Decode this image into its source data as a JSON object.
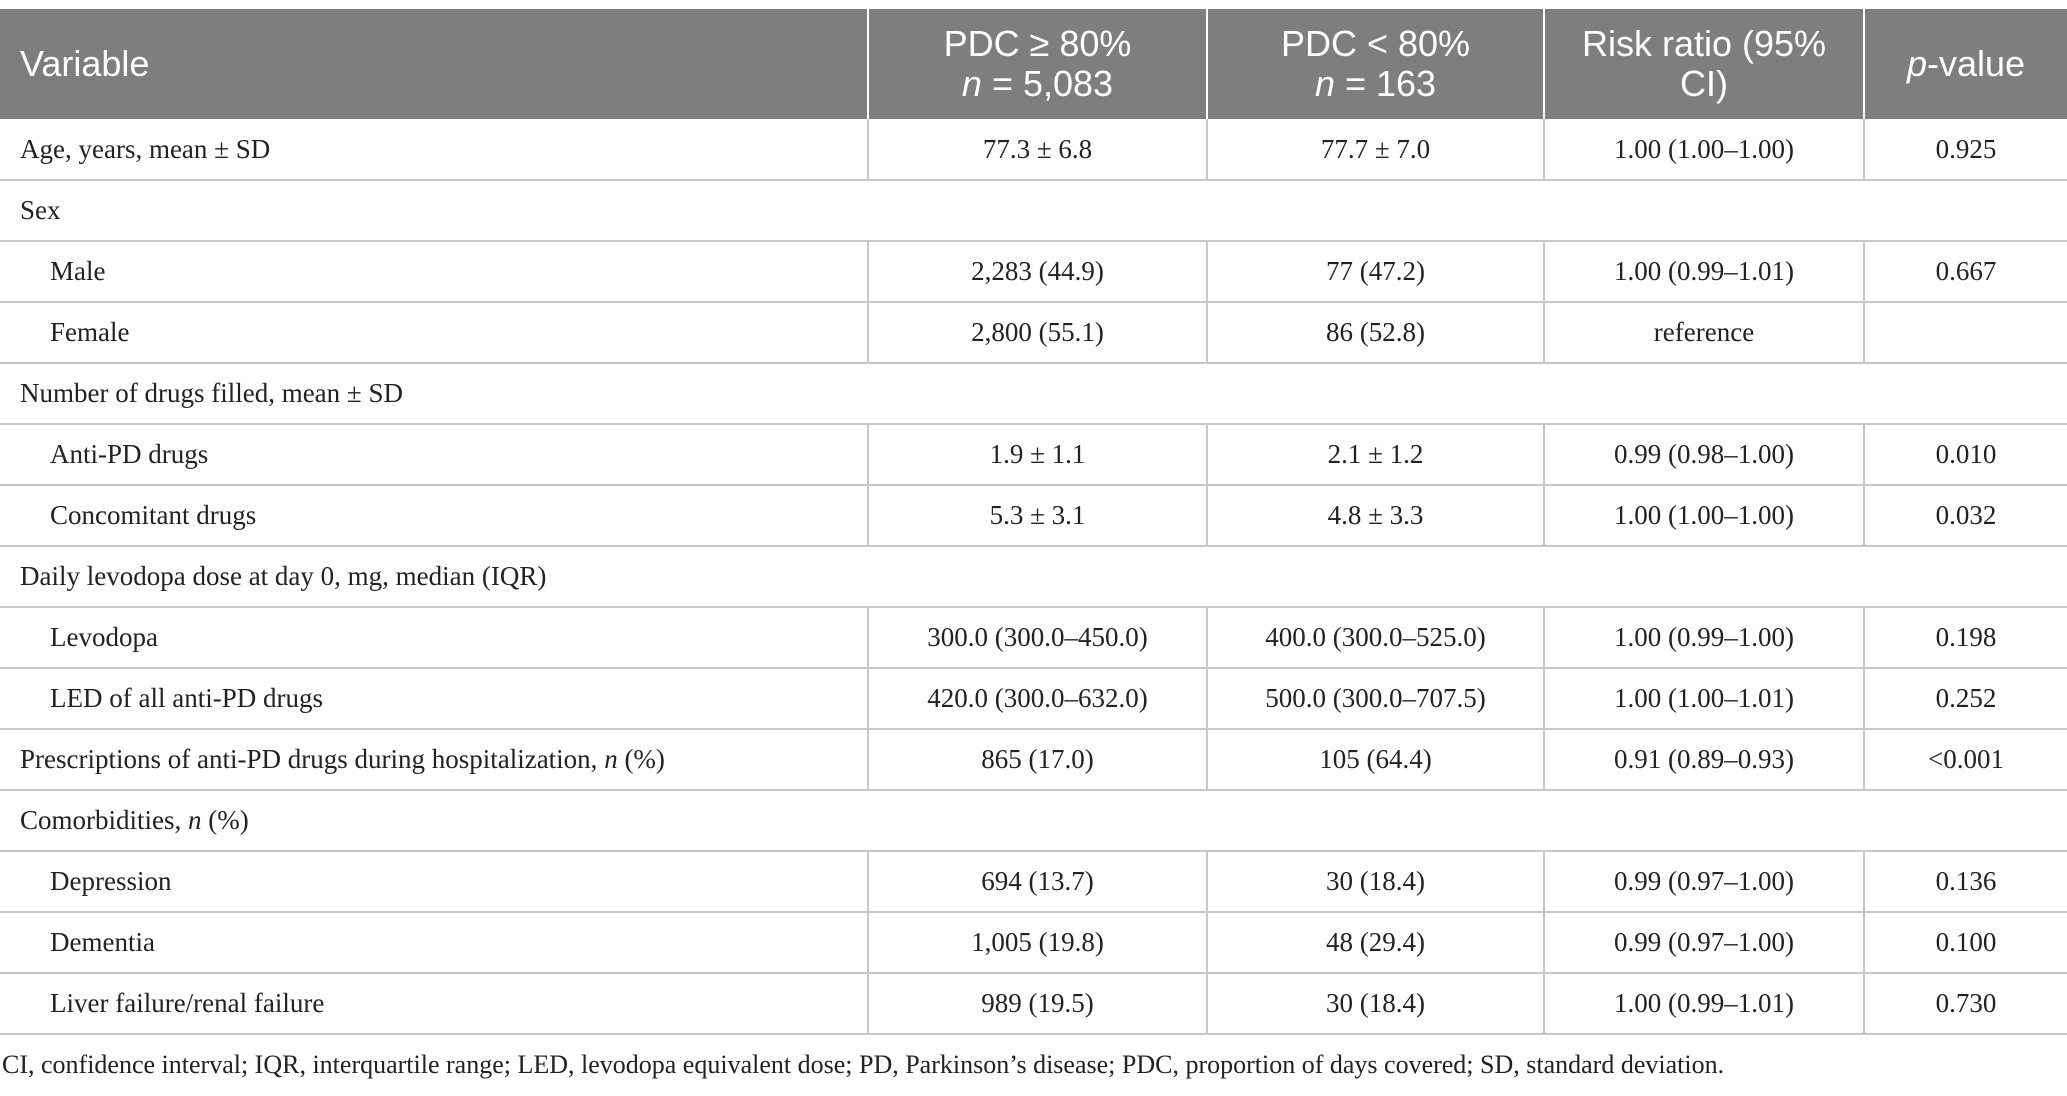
{
  "header": {
    "variable": "Variable",
    "pdc_high": "PDC ≥ 80%",
    "n_high_prefix": "n",
    "n_high_rest": " = 5,083",
    "pdc_low": "PDC < 80%",
    "n_low_prefix": "n",
    "n_low_rest": " = 163",
    "risk_ratio_l1": "Risk ratio (95%",
    "risk_ratio_l2": "CI)",
    "pvalue_prefix": "p",
    "pvalue_rest": "-value"
  },
  "rows": [
    {
      "label": "Age, years, mean ± SD",
      "high": "77.3 ± 6.8",
      "low": "77.7 ± 7.0",
      "rr": "1.00 (1.00–1.00)",
      "p": "0.925"
    },
    {
      "label": "Sex"
    },
    {
      "label": "Male",
      "high": "2,283 (44.9)",
      "low": "77 (47.2)",
      "rr": "1.00 (0.99–1.01)",
      "p": "0.667"
    },
    {
      "label": "Female",
      "high": "2,800 (55.1)",
      "low": "86 (52.8)",
      "rr": "reference",
      "p": ""
    },
    {
      "label": "Number of drugs filled, mean ± SD"
    },
    {
      "label": "Anti-PD drugs",
      "high": "1.9 ± 1.1",
      "low": "2.1 ± 1.2",
      "rr": "0.99 (0.98–1.00)",
      "p": "0.010"
    },
    {
      "label": "Concomitant drugs",
      "high": "5.3 ± 3.1",
      "low": "4.8 ± 3.3",
      "rr": "1.00 (1.00–1.00)",
      "p": "0.032"
    },
    {
      "label": "Daily levodopa dose at day 0, mg, median (IQR)"
    },
    {
      "label": "Levodopa",
      "high": "300.0 (300.0–450.0)",
      "low": "400.0 (300.0–525.0)",
      "rr": "1.00 (0.99–1.00)",
      "p": "0.198"
    },
    {
      "label": "LED of all anti-PD drugs",
      "high": "420.0 (300.0–632.0)",
      "low": "500.0 (300.0–707.5)",
      "rr": "1.00 (1.00–1.01)",
      "p": "0.252"
    },
    {
      "label_pre": "Prescriptions of anti-PD drugs during hospitalization, ",
      "label_it": "n",
      "label_post": " (%)",
      "high": "865 (17.0)",
      "low": "105 (64.4)",
      "rr": "0.91 (0.89–0.93)",
      "p": "<0.001"
    },
    {
      "label_pre": "Comorbidities, ",
      "label_it": "n",
      "label_post": " (%)"
    },
    {
      "label": "Depression",
      "high": "694 (13.7)",
      "low": "30 (18.4)",
      "rr": "0.99 (0.97–1.00)",
      "p": "0.136"
    },
    {
      "label": "Dementia",
      "high": "1,005 (19.8)",
      "low": "48 (29.4)",
      "rr": "0.99 (0.97–1.00)",
      "p": "0.100"
    },
    {
      "label": "Liver failure/renal failure",
      "high": "989 (19.5)",
      "low": "30 (18.4)",
      "rr": "1.00 (0.99–1.01)",
      "p": "0.730"
    }
  ],
  "footnote": "CI, confidence interval; IQR, interquartile range; LED, levodopa equivalent dose; PD, Parkinson’s disease; PDC, proportion of days covered; SD, standard deviation."
}
